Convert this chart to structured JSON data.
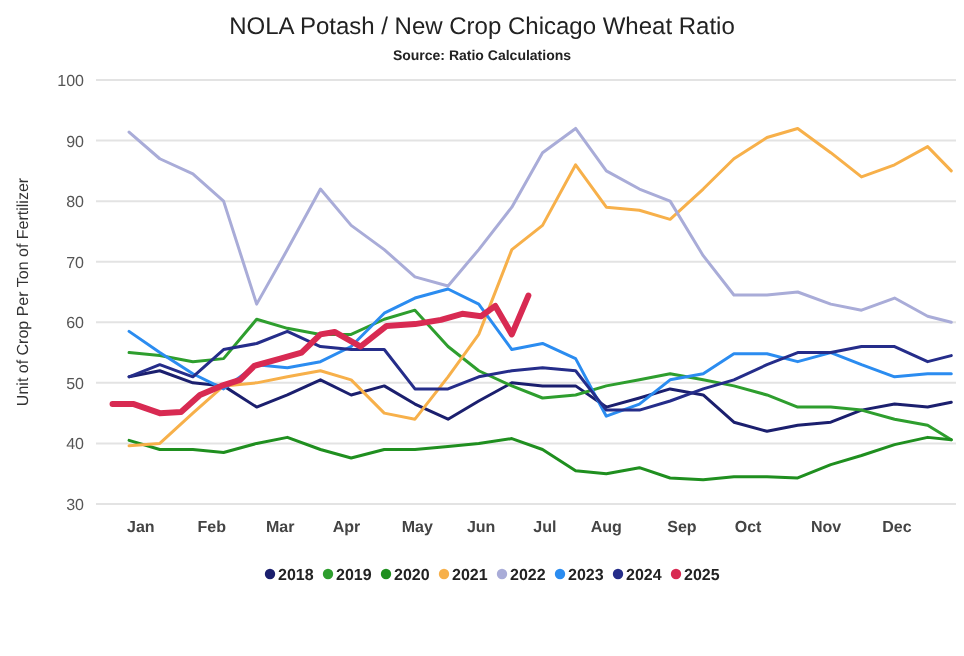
{
  "chart_data": {
    "type": "line",
    "title": "NOLA Potash / New Crop Chicago Wheat Ratio",
    "subtitle": "Source: Ratio Calculations",
    "ylabel": "Unit of Crop Per Ton of Fertilizer",
    "x": [
      "--01-15",
      "--01-28",
      "--02-11",
      "--02-24",
      "--03-10",
      "--03-23",
      "--04-06",
      "--04-19",
      "--05-03",
      "--05-16",
      "--05-30",
      "--06-12",
      "--06-26",
      "--07-09",
      "--07-23",
      "--08-05",
      "--08-19",
      "--09-01",
      "--09-15",
      "--09-28",
      "--10-12",
      "--10-25",
      "--11-08",
      "--11-21",
      "--12-05",
      "--12-19",
      "--12-29"
    ],
    "xlim": [
      "--01-01",
      "--12-31"
    ],
    "xticks": [
      {
        "value": "--01-20",
        "label": "Jan"
      },
      {
        "value": "--02-19",
        "label": "Feb"
      },
      {
        "value": "--03-20",
        "label": "Mar"
      },
      {
        "value": "--04-17",
        "label": "Apr"
      },
      {
        "value": "--05-17",
        "label": "May"
      },
      {
        "value": "--06-13",
        "label": "Jun"
      },
      {
        "value": "--07-10",
        "label": "Jul"
      },
      {
        "value": "--08-05",
        "label": "Aug"
      },
      {
        "value": "--09-06",
        "label": "Sep"
      },
      {
        "value": "--10-04",
        "label": "Oct"
      },
      {
        "value": "--11-06",
        "label": "Nov"
      },
      {
        "value": "--12-06",
        "label": "Dec"
      }
    ],
    "ylim": [
      30,
      100
    ],
    "yticks": [
      30,
      40,
      50,
      60,
      70,
      80,
      90,
      100
    ],
    "grid": "y",
    "legend": "bottom",
    "marker": "none",
    "line_style": "solid",
    "series": [
      {
        "name": "2018",
        "color": "#1b1f6e",
        "values": [
          51,
          52,
          50,
          49.5,
          46,
          48,
          50.5,
          48,
          49.5,
          46.5,
          44,
          47,
          50,
          49.5,
          49.5,
          46,
          47.5,
          49,
          48,
          43.5,
          42,
          43,
          43.5,
          45.5,
          46.5,
          46,
          46.8
        ]
      },
      {
        "name": "2019",
        "color": "#2e9e2e",
        "values": [
          55,
          54.5,
          53.5,
          54,
          60.5,
          59,
          58,
          58,
          60.5,
          62,
          56,
          52,
          49.5,
          47.5,
          48,
          49.5,
          50.5,
          51.5,
          50.5,
          49.5,
          48,
          46,
          46,
          45.5,
          44,
          43,
          40.6
        ]
      },
      {
        "name": "2020",
        "color": "#1f8f1f",
        "values": [
          40.5,
          39,
          39,
          38.5,
          40,
          41,
          39,
          37.6,
          39,
          39,
          39.5,
          40,
          40.8,
          39,
          35.5,
          35,
          36,
          34.3,
          34,
          34.5,
          34.5,
          34.3,
          36.5,
          38,
          39.8,
          41,
          40.6
        ]
      },
      {
        "name": "2021",
        "color": "#f7b04a",
        "values": [
          39.6,
          40,
          45,
          49.5,
          50,
          51,
          52,
          50.5,
          45,
          44,
          51,
          58,
          72,
          76,
          86,
          79,
          78.5,
          77,
          82,
          87,
          90.5,
          92,
          88,
          84,
          86,
          89,
          85
        ]
      },
      {
        "name": "2022",
        "color": "#a9acd8",
        "values": [
          91.4,
          87,
          84.5,
          80,
          63,
          72,
          82,
          76,
          72,
          67.5,
          66,
          72,
          79,
          88,
          92,
          85,
          82,
          80,
          71,
          64.5,
          64.5,
          65,
          63,
          62,
          64,
          61,
          60
        ]
      },
      {
        "name": "2023",
        "color": "#2b8cf0",
        "values": [
          58.5,
          55,
          51.5,
          49,
          53,
          52.5,
          53.5,
          56,
          61.5,
          64,
          65.5,
          63,
          55.5,
          56.5,
          54,
          44.5,
          46.5,
          50.5,
          51.5,
          54.8,
          54.8,
          53.5,
          55,
          53,
          51,
          51.5,
          51.5
        ]
      },
      {
        "name": "2024",
        "color": "#252d8a",
        "values": [
          51,
          53,
          51,
          55.5,
          56.5,
          58.5,
          56,
          55.5,
          55.5,
          49,
          49,
          51,
          52,
          52.5,
          52,
          45.5,
          45.5,
          47,
          49,
          50.5,
          53,
          55,
          55,
          56,
          56,
          53.5,
          54.5
        ]
      },
      {
        "name": "2025",
        "color": "#d82a52",
        "x": [
          "--01-08",
          "--01-17",
          "--01-28",
          "--02-06",
          "--02-14",
          "--02-23",
          "--03-03",
          "--03-09",
          "--03-20",
          "--03-29",
          "--04-06",
          "--04-12",
          "--04-23",
          "--05-04",
          "--05-16",
          "--05-27",
          "--06-05",
          "--06-13",
          "--06-19",
          "--06-26",
          "--07-03"
        ],
        "values": [
          46.5,
          46.5,
          45,
          45.2,
          48,
          49.5,
          50.5,
          52.8,
          54,
          55,
          58,
          58.4,
          56,
          59.4,
          59.7,
          60.4,
          61.4,
          61,
          62.7,
          58,
          64.4
        ]
      }
    ]
  }
}
